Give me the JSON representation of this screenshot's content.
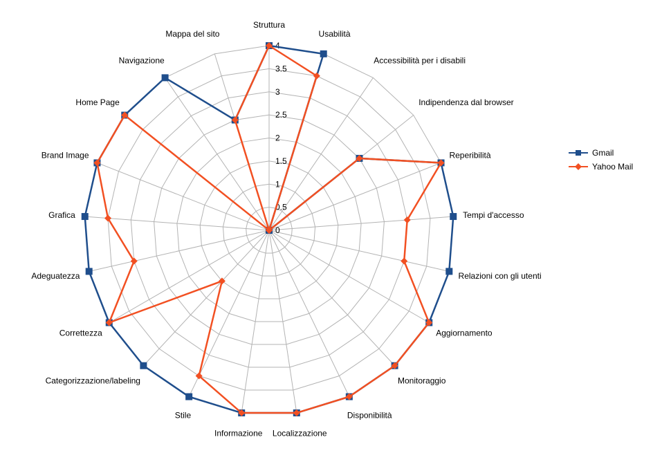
{
  "chart_data": {
    "type": "radar",
    "title": "",
    "categories": [
      "Struttura",
      "Usabilità",
      "Accessibilità per i disabili",
      "Indipendenza dal browser",
      "Reperibilità",
      "Tempi d'accesso",
      "Relazioni con gli utenti",
      "Aggiornamento",
      "Monitoraggio",
      "Disponibilità",
      "Localizzazione",
      "Informazione",
      "Stile",
      "Categorizzazione/labeling",
      "Correttezza",
      "Adeguatezza",
      "Grafica",
      "Brand Image",
      "Home Page",
      "Navigazione",
      "Mappa del sito"
    ],
    "series": [
      {
        "name": "Gmail",
        "color": "#1f4e8c",
        "marker": "square",
        "values": [
          4,
          4,
          0,
          2.5,
          4,
          4,
          4,
          4,
          4,
          4,
          4,
          4,
          4,
          4,
          4,
          4,
          4,
          4,
          4,
          4,
          2.5
        ]
      },
      {
        "name": "Yahoo Mail",
        "color": "#f25022",
        "marker": "diamond",
        "values": [
          4,
          3.5,
          0,
          2.5,
          4,
          3,
          3,
          4,
          4,
          4,
          4,
          4,
          3.5,
          1.5,
          4,
          3,
          3.5,
          4,
          4,
          0,
          2.5
        ]
      }
    ],
    "rlim": [
      0,
      4
    ],
    "ticks": [
      "0",
      "0.5",
      "1",
      "1.5",
      "2",
      "2.5",
      "3",
      "3.5",
      "4"
    ],
    "grid": true,
    "legend": "right"
  }
}
